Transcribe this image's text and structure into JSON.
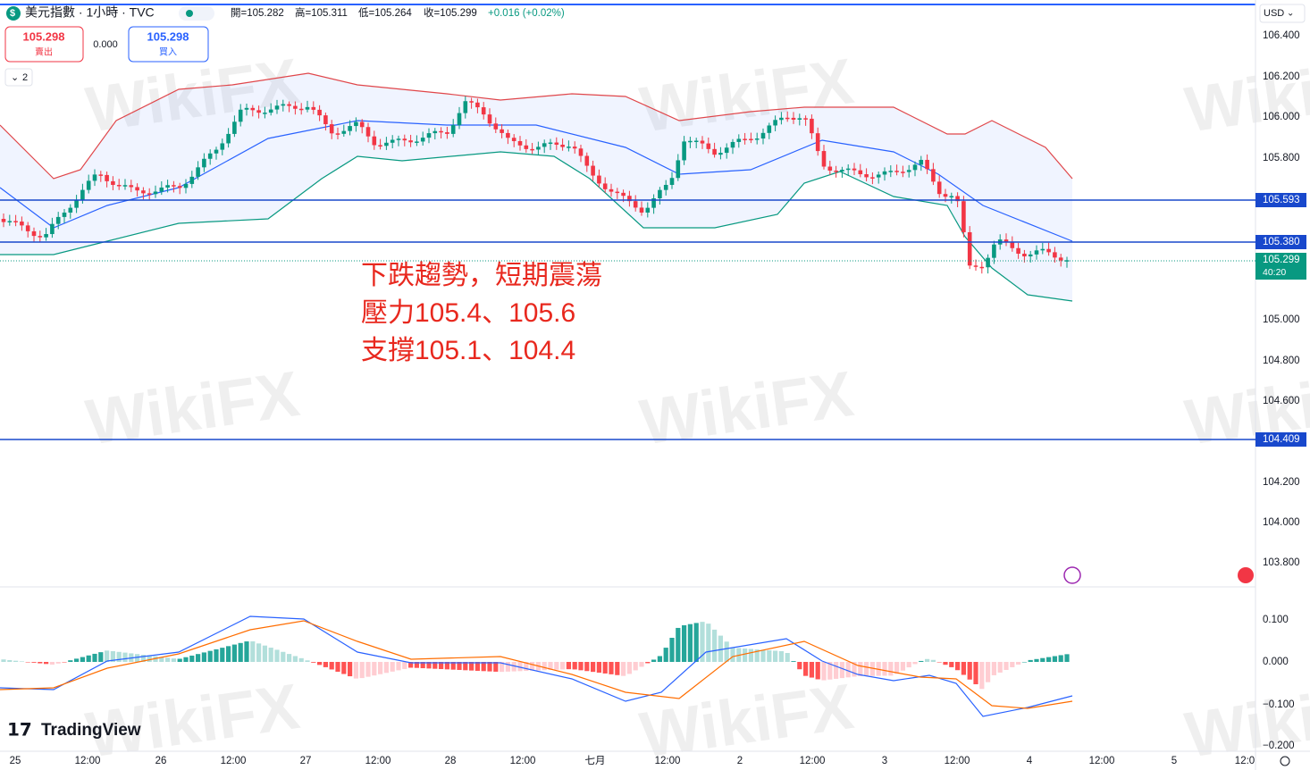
{
  "header": {
    "symbol": "美元指數 · 1小時 · TVC",
    "open": "開=105.282",
    "high": "高=105.311",
    "low": "低=105.264",
    "close": "收=105.299",
    "change": "+0.016 (+0.02%)"
  },
  "trade": {
    "sell_price": "105.298",
    "sell_label": "賣出",
    "spread": "0.000",
    "buy_price": "105.298",
    "buy_label": "買入",
    "indicators": "2"
  },
  "currency": "USD",
  "price_axis": [
    "106.400",
    "106.200",
    "106.000",
    "105.800",
    "105.000",
    "104.800",
    "104.600",
    "104.200",
    "104.000",
    "103.800"
  ],
  "levels": [
    {
      "label": "105.593"
    },
    {
      "label": "105.380"
    },
    {
      "label": "104.409"
    }
  ],
  "last_price": {
    "price": "105.299",
    "countdown": "40:20"
  },
  "annotation": [
    "下跌趨勢，短期震蕩",
    "壓力105.4、105.6",
    "支撐105.1、104.4"
  ],
  "macd_axis": [
    "0.100",
    "0.000",
    "−0.100",
    "−0.200"
  ],
  "time_axis": [
    "25",
    "12:00",
    "26",
    "12:00",
    "27",
    "12:00",
    "28",
    "12:00",
    "七月",
    "12:00",
    "2",
    "12:00",
    "3",
    "12:00",
    "4",
    "12:00",
    "5",
    "12:0"
  ],
  "logo": "TradingView",
  "watermark": "WikiFX"
}
